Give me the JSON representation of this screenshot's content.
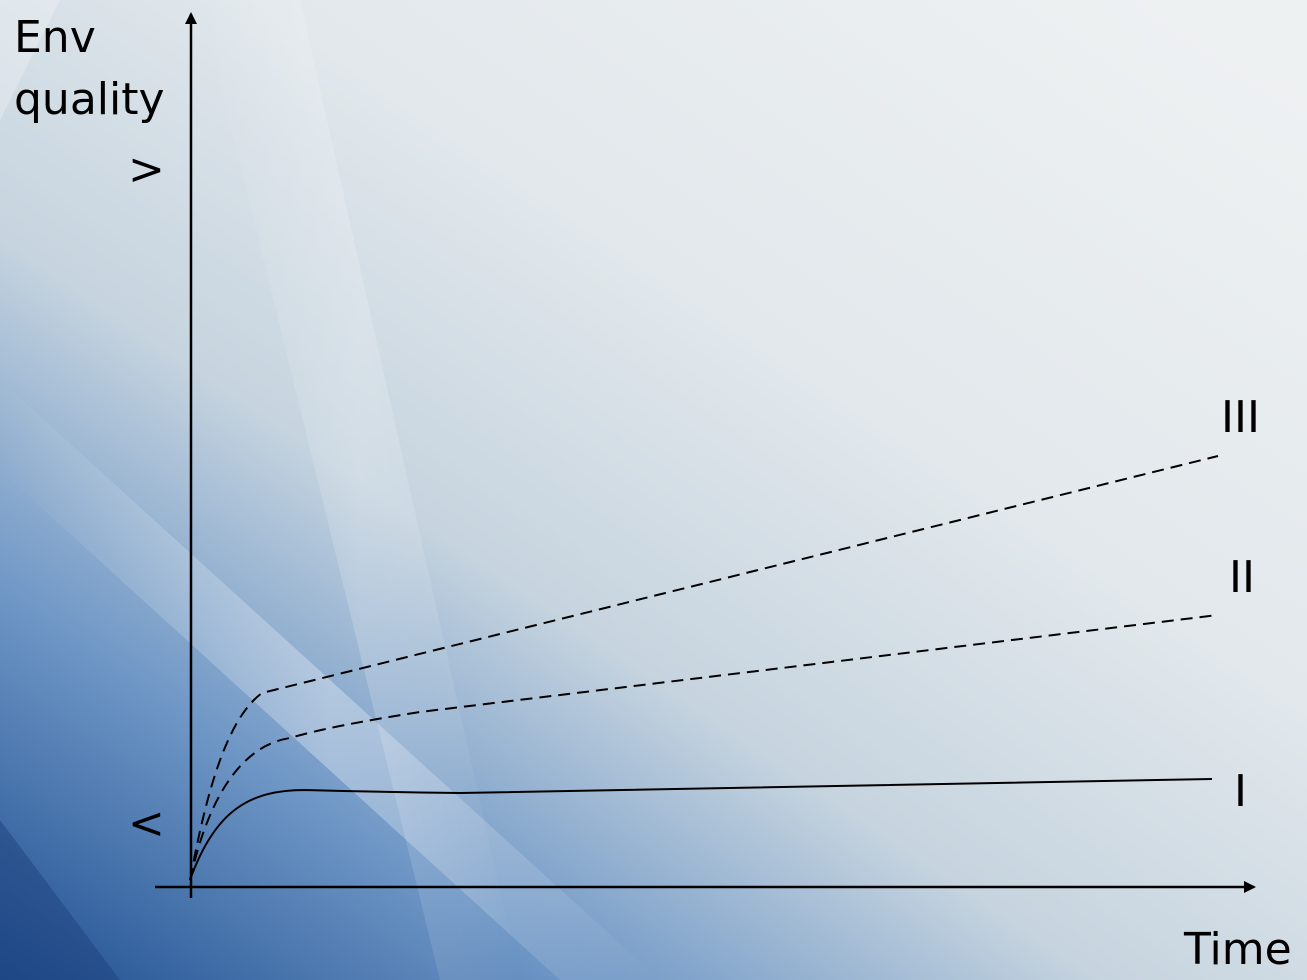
{
  "diagram": {
    "y_axis_label_line1": "Env",
    "y_axis_label_line2": "quality",
    "y_axis_high_marker": ">",
    "y_axis_low_marker": "<",
    "x_axis_label": "Time",
    "curves": [
      {
        "label": "I",
        "style": "solid"
      },
      {
        "label": "II",
        "style": "dashed"
      },
      {
        "label": "III",
        "style": "dashed"
      }
    ]
  },
  "colors": {
    "background_light": "#e4e9ec",
    "background_blue": "#3a6aa8",
    "line": "#000000"
  }
}
